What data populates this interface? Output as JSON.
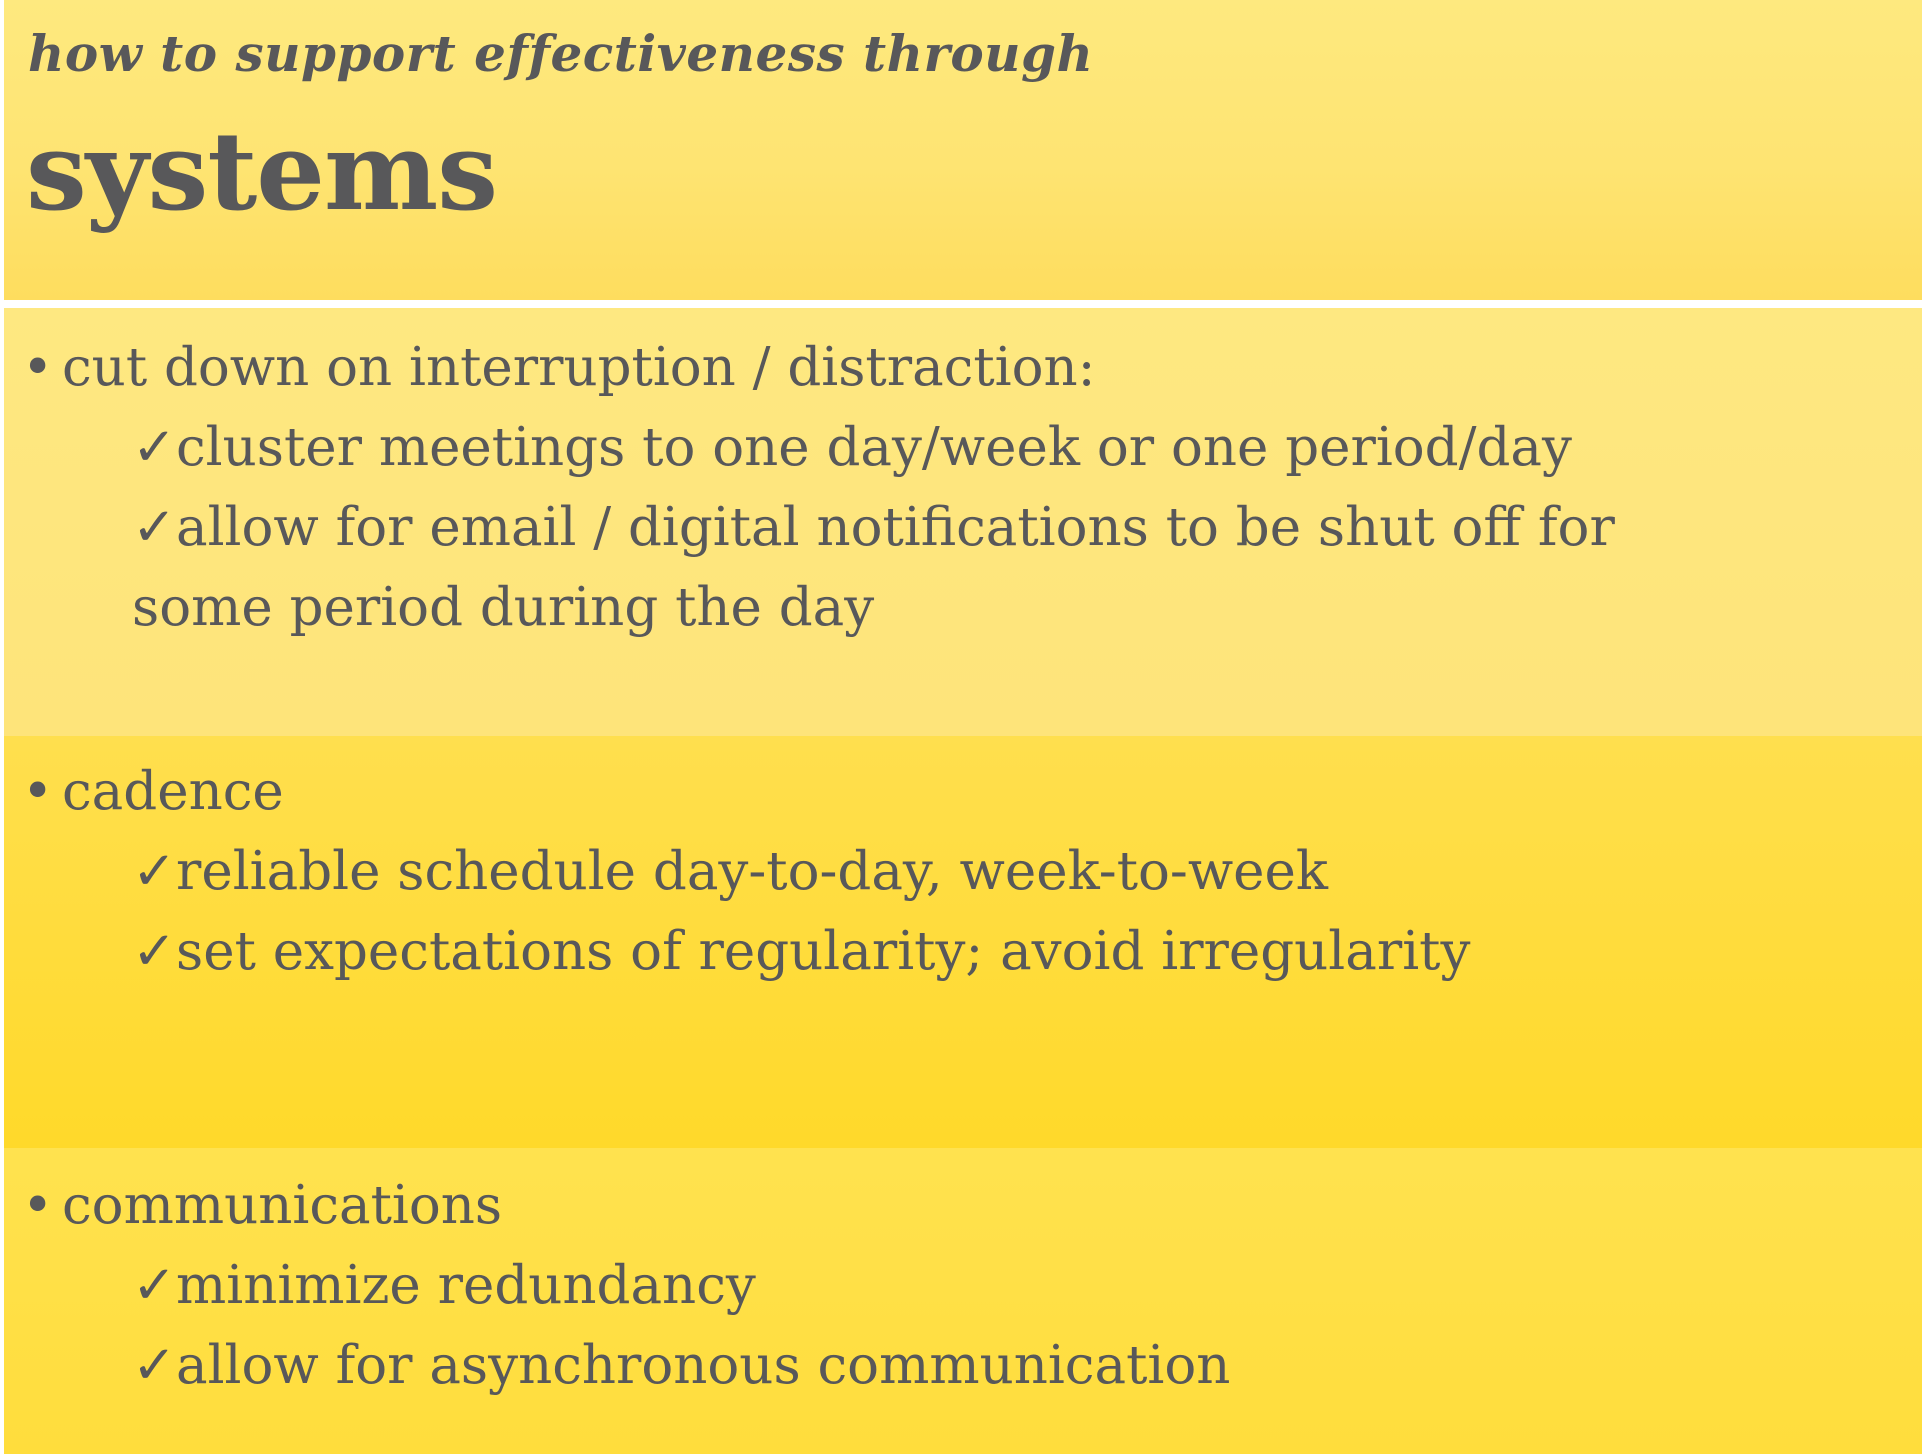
{
  "header": {
    "kicker": "how to support effectiveness through",
    "title": "systems"
  },
  "colors": {
    "text": "#58585a",
    "header_band": "#fee472",
    "band_1": "#fee47a",
    "band_2": "#ffd92a",
    "band_3": "#ffdd3c"
  },
  "bullet_glyph": "•",
  "check_glyph": "✓",
  "sections": [
    {
      "heading": "cut down on interruption / distraction:",
      "items": [
        "cluster meetings to one day/week or one period/day",
        "allow for email / digital notifications to be shut off for some period during the day"
      ]
    },
    {
      "heading": "cadence",
      "items": [
        "reliable schedule day-to-day, week-to-week",
        "set expectations of regularity; avoid irregularity"
      ]
    },
    {
      "heading": "communications",
      "items": [
        "minimize redundancy",
        "allow for asynchronous communication"
      ]
    }
  ]
}
